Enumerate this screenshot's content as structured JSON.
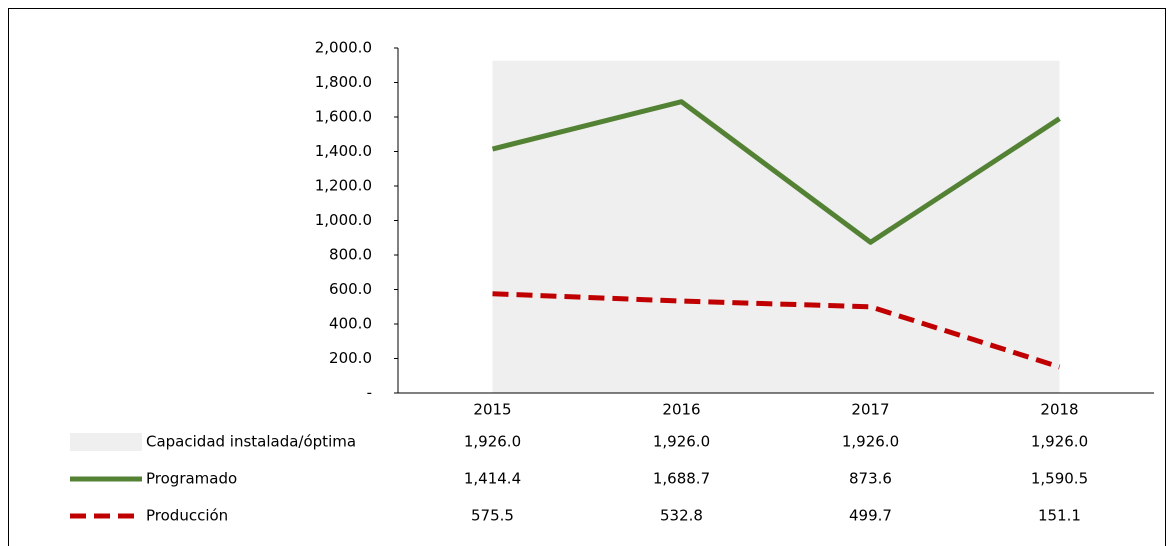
{
  "chart_data": {
    "type": "line",
    "categories": [
      "2015",
      "2016",
      "2017",
      "2018"
    ],
    "series": [
      {
        "name": "Capacidad instalada/óptima",
        "type": "area",
        "color": "#efefef",
        "values": [
          1926.0,
          1926.0,
          1926.0,
          1926.0
        ],
        "value_labels": [
          "1,926.0",
          "1,926.0",
          "1,926.0",
          "1,926.0"
        ]
      },
      {
        "name": "Programado",
        "type": "line",
        "color": "#548235",
        "values": [
          1414.4,
          1688.7,
          873.6,
          1590.5
        ],
        "value_labels": [
          "1,414.4",
          "1,688.7",
          "873.6",
          "1,590.5"
        ]
      },
      {
        "name": "Producción",
        "type": "line",
        "dashed": true,
        "color": "#c00000",
        "values": [
          575.5,
          532.8,
          499.7,
          151.1
        ],
        "value_labels": [
          "575.5",
          "532.8",
          "499.7",
          "151.1"
        ]
      }
    ],
    "ylim": [
      0,
      2000
    ],
    "yticks": [
      {
        "value": 0,
        "label": "-"
      },
      {
        "value": 200,
        "label": "200.0"
      },
      {
        "value": 400,
        "label": "400.0"
      },
      {
        "value": 600,
        "label": "600.0"
      },
      {
        "value": 800,
        "label": "800.0"
      },
      {
        "value": 1000,
        "label": "1,000.0"
      },
      {
        "value": 1200,
        "label": "1,200.0"
      },
      {
        "value": 1400,
        "label": "1,400.0"
      },
      {
        "value": 1600,
        "label": "1,600.0"
      },
      {
        "value": 1800,
        "label": "1,800.0"
      },
      {
        "value": 2000,
        "label": "2,000.0"
      }
    ],
    "data_table": true
  }
}
